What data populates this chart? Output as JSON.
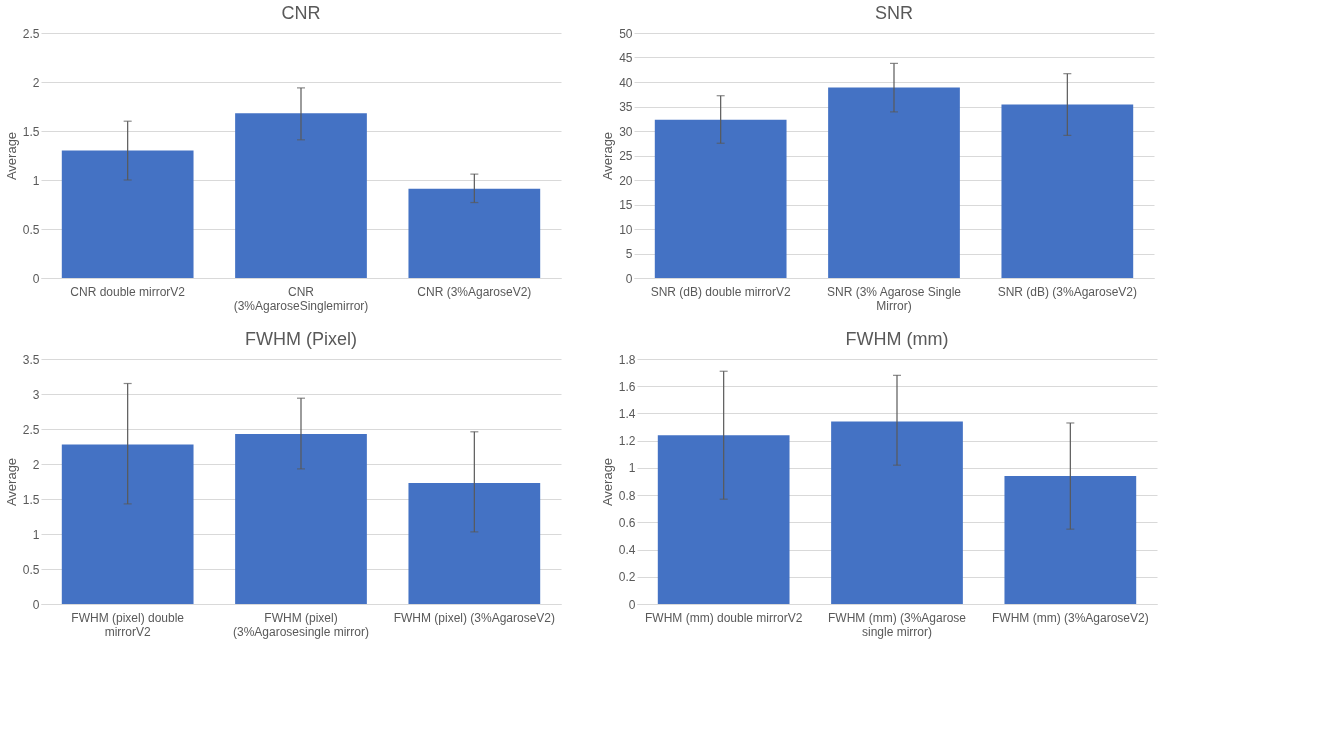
{
  "chart_data": [
    {
      "type": "bar",
      "title": "CNR",
      "ylabel": "Average",
      "categories": [
        "CNR double mirrorV2",
        "CNR (3%AgaroseSinglemirror)",
        "CNR (3%AgaroseV2)"
      ],
      "values": [
        1.3,
        1.68,
        0.91
      ],
      "errors": [
        [
          1.0,
          1.6
        ],
        [
          1.41,
          1.94
        ],
        [
          0.77,
          1.06
        ]
      ],
      "color": "#4472c4",
      "ylim": [
        0,
        2.5
      ],
      "yticks": [
        0,
        0.5,
        1,
        1.5,
        2,
        2.5
      ],
      "grid": "y"
    },
    {
      "type": "bar",
      "title": "SNR",
      "ylabel": "Average",
      "categories": [
        "SNR (dB) double mirrorV2",
        "SNR (3% Agarose Single Mirror)",
        "SNR (dB) (3%AgaroseV2)"
      ],
      "values": [
        32.3,
        38.9,
        35.4
      ],
      "errors": [
        [
          27.5,
          37.2
        ],
        [
          33.9,
          43.8
        ],
        [
          29.1,
          41.7
        ]
      ],
      "color": "#4472c4",
      "ylim": [
        0,
        50
      ],
      "yticks": [
        0,
        5,
        10,
        15,
        20,
        25,
        30,
        35,
        40,
        45,
        50
      ],
      "grid": "y"
    },
    {
      "type": "bar",
      "title": "FWHM (Pixel)",
      "ylabel": "Average",
      "categories": [
        "FWHM (pixel) double mirrorV2",
        "FWHM (pixel) (3%Agarosesingle mirror)",
        "FWHM (pixel) (3%AgaroseV2)"
      ],
      "values": [
        2.28,
        2.43,
        1.73
      ],
      "errors": [
        [
          1.43,
          3.15
        ],
        [
          1.93,
          2.94
        ],
        [
          1.03,
          2.46
        ]
      ],
      "color": "#4472c4",
      "ylim": [
        0,
        3.5
      ],
      "yticks": [
        0,
        0.5,
        1,
        1.5,
        2,
        2.5,
        3,
        3.5
      ],
      "grid": "y"
    },
    {
      "type": "bar",
      "title": "FWHM (mm)",
      "ylabel": "Average",
      "categories": [
        "FWHM (mm) double mirrorV2",
        "FWHM (mm) (3%Agarose single mirror)",
        "FWHM (mm) (3%AgaroseV2)"
      ],
      "values": [
        1.24,
        1.34,
        0.94
      ],
      "errors": [
        [
          0.77,
          1.71
        ],
        [
          1.02,
          1.68
        ],
        [
          0.55,
          1.33
        ]
      ],
      "color": "#4472c4",
      "ylim": [
        0,
        1.8
      ],
      "yticks": [
        0,
        0.2,
        0.4,
        0.6,
        0.8,
        1,
        1.2,
        1.4,
        1.6,
        1.8
      ],
      "grid": "y"
    }
  ]
}
